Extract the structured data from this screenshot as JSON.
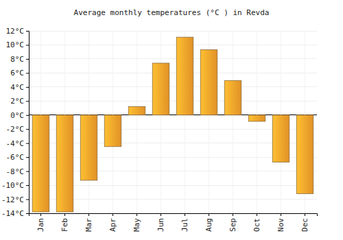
{
  "chart_data": {
    "type": "bar",
    "title": "Average monthly temperatures (°C ) in Revda",
    "categories": [
      "Jan",
      "Feb",
      "Mar",
      "Apr",
      "May",
      "Jun",
      "Jul",
      "Aug",
      "Sep",
      "Oct",
      "Nov",
      "Dec"
    ],
    "values": [
      -13.8,
      -13.8,
      -9.3,
      -4.5,
      1.2,
      7.4,
      11.1,
      9.3,
      4.9,
      -0.9,
      -6.7,
      -11.2
    ],
    "color": "#f9a12a",
    "ylim": [
      -14,
      12
    ],
    "yticks": [
      {
        "value": -14,
        "label": "-14°C"
      },
      {
        "value": -12,
        "label": "-12°C"
      },
      {
        "value": -10,
        "label": "-10°C"
      },
      {
        "value": -8,
        "label": "-8°C"
      },
      {
        "value": -6,
        "label": "-6°C"
      },
      {
        "value": -4,
        "label": "-4°C"
      },
      {
        "value": -2,
        "label": "-2°C"
      },
      {
        "value": 0,
        "label": "0°C"
      },
      {
        "value": 2,
        "label": "2°C"
      },
      {
        "value": 4,
        "label": "4°C"
      },
      {
        "value": 6,
        "label": "6°C"
      },
      {
        "value": 8,
        "label": "8°C"
      },
      {
        "value": 10,
        "label": "10°C"
      },
      {
        "value": 12,
        "label": "12°C"
      }
    ],
    "grid": true
  }
}
